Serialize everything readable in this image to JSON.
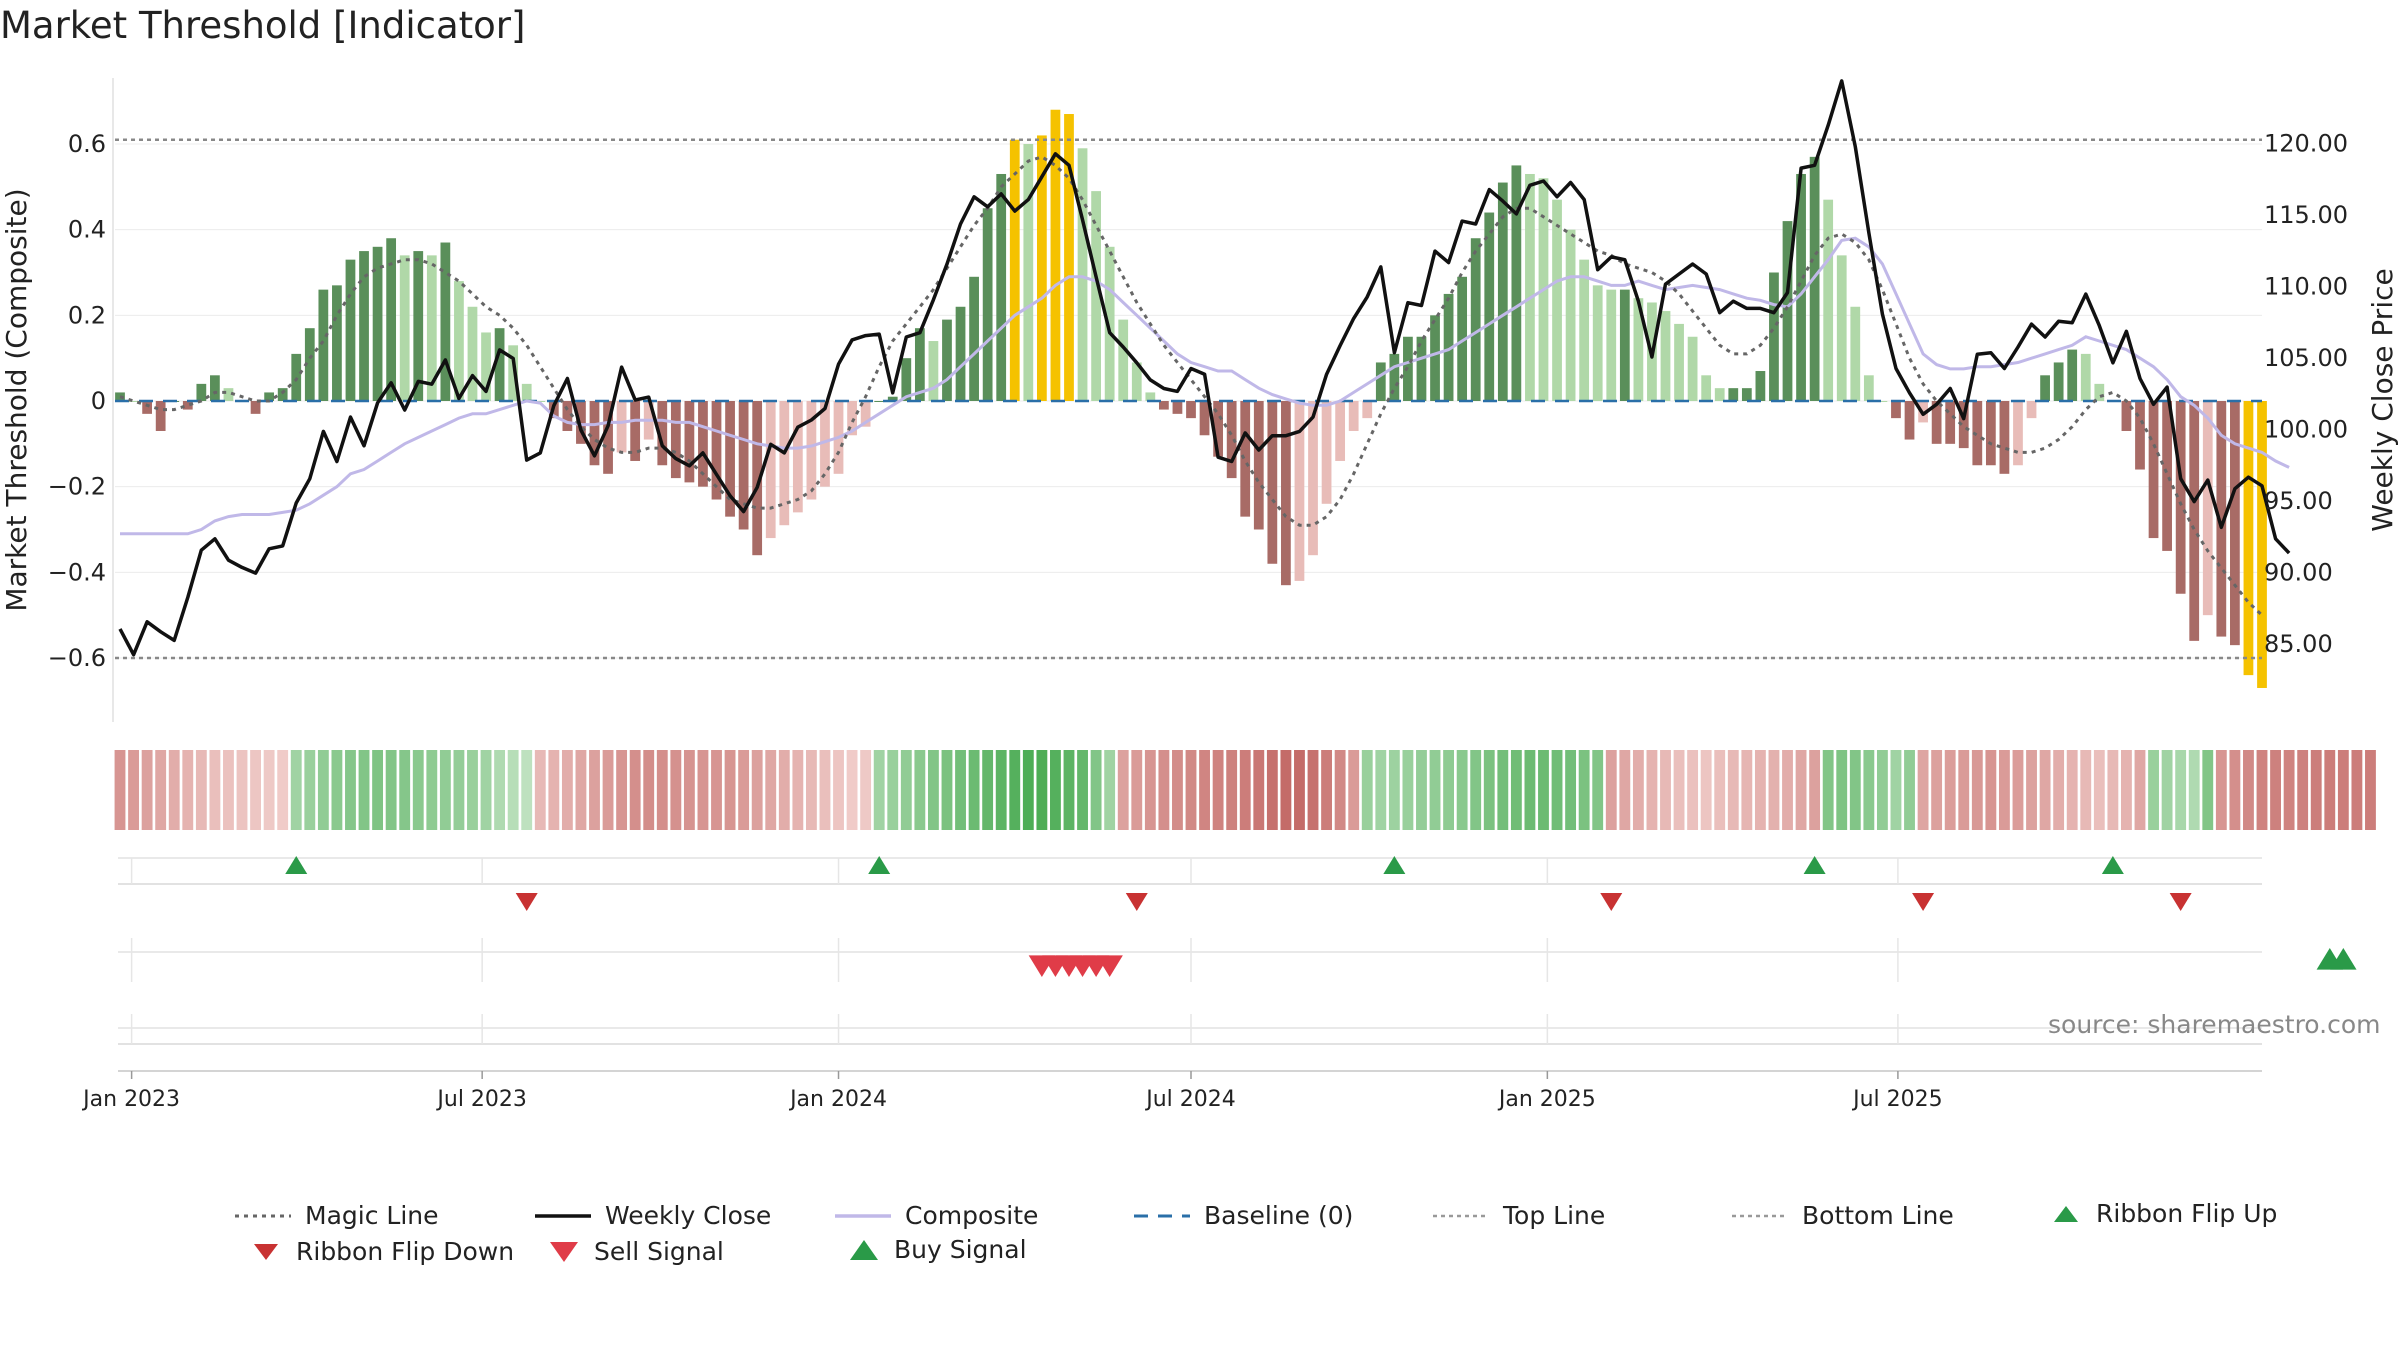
{
  "title": "Market Threshold [Indicator]",
  "source": "source: sharemaestro.com",
  "colors": {
    "pos_dark": "#5a8f5a",
    "pos_light": "#b0d8a8",
    "neg_dark": "#a86b66",
    "neg_light": "#e8bcb8",
    "extreme": "#f5c200",
    "close": "#111111",
    "composite": "#c0b8e8",
    "magic": "#666666",
    "baseline": "#2a6fa8",
    "buy": "#2a9a48",
    "sell": "#d83a3a",
    "flip_down": "#c83232"
  },
  "chart_data": {
    "type": "bar+line",
    "start": "2022-12-26",
    "xlabels": [
      "Jan 2023",
      "Jul 2023",
      "Jan 2024",
      "Jul 2024",
      "Jan 2025",
      "Jul 2025"
    ],
    "ylabel_left": "Market Threshold (Composite)",
    "ylabel_right": "Weekly Close Price",
    "ylim_left": [
      -0.75,
      0.75
    ],
    "yticks_left": [
      "0.6",
      "0.4",
      "0.2",
      "0",
      "−0.2",
      "−0.4",
      "−0.6"
    ],
    "ylim_right": [
      82.5,
      124.5
    ],
    "yticks_right": [
      "120.00",
      "115.00",
      "110.00",
      "105.00",
      "100.00",
      "95.00",
      "90.00",
      "85.00"
    ],
    "top_line": 0.61,
    "bottom_line": -0.6,
    "bars": [
      0.02,
      0,
      -0.03,
      -0.07,
      0,
      -0.02,
      0.04,
      0.06,
      0.03,
      0,
      -0.03,
      0.02,
      0.03,
      0.11,
      0.17,
      0.26,
      0.27,
      0.33,
      0.35,
      0.36,
      0.38,
      0.34,
      0.35,
      0.34,
      0.37,
      0.28,
      0.22,
      0.16,
      0.17,
      0.13,
      0.04,
      0,
      -0.04,
      -0.07,
      -0.1,
      -0.15,
      -0.17,
      -0.12,
      -0.14,
      -0.09,
      -0.15,
      -0.18,
      -0.19,
      -0.2,
      -0.23,
      -0.27,
      -0.3,
      -0.36,
      -0.32,
      -0.29,
      -0.26,
      -0.23,
      -0.2,
      -0.17,
      -0.08,
      -0.06,
      0,
      0.01,
      0.1,
      0.17,
      0.14,
      0.19,
      0.22,
      0.29,
      0.45,
      0.53,
      0.61,
      0.6,
      0.62,
      0.68,
      0.67,
      0.59,
      0.49,
      0.36,
      0.19,
      0.09,
      0.02,
      -0.02,
      -0.03,
      -0.04,
      -0.08,
      -0.13,
      -0.18,
      -0.27,
      -0.3,
      -0.38,
      -0.43,
      -0.42,
      -0.36,
      -0.24,
      -0.14,
      -0.07,
      -0.04,
      0.09,
      0.11,
      0.15,
      0.15,
      0.2,
      0.25,
      0.29,
      0.38,
      0.44,
      0.51,
      0.55,
      0.53,
      0.52,
      0.47,
      0.4,
      0.33,
      0.27,
      0.26,
      0.26,
      0.24,
      0.23,
      0.21,
      0.18,
      0.15,
      0.06,
      0.03,
      0.03,
      0.03,
      0.07,
      0.3,
      0.42,
      0.53,
      0.57,
      0.47,
      0.34,
      0.22,
      0.06,
      0,
      -0.04,
      -0.09,
      -0.05,
      -0.1,
      -0.1,
      -0.11,
      -0.15,
      -0.15,
      -0.17,
      -0.15,
      -0.04,
      0.06,
      0.09,
      0.12,
      0.11,
      0.04,
      0,
      -0.07,
      -0.16,
      -0.32,
      -0.35,
      -0.45,
      -0.56,
      -0.5,
      -0.55,
      -0.57,
      -0.64,
      -0.67
    ],
    "composite": [
      -0.31,
      -0.31,
      -0.31,
      -0.31,
      -0.31,
      -0.31,
      -0.3,
      -0.28,
      -0.27,
      -0.265,
      -0.265,
      -0.265,
      -0.26,
      -0.255,
      -0.24,
      -0.22,
      -0.2,
      -0.17,
      -0.16,
      -0.14,
      -0.12,
      -0.1,
      -0.085,
      -0.07,
      -0.055,
      -0.04,
      -0.03,
      -0.03,
      -0.02,
      -0.01,
      0,
      -0.005,
      -0.035,
      -0.05,
      -0.055,
      -0.055,
      -0.05,
      -0.05,
      -0.045,
      -0.045,
      -0.045,
      -0.05,
      -0.05,
      -0.06,
      -0.07,
      -0.08,
      -0.09,
      -0.1,
      -0.105,
      -0.11,
      -0.11,
      -0.105,
      -0.095,
      -0.085,
      -0.07,
      -0.05,
      -0.03,
      -0.01,
      0.01,
      0.02,
      0.03,
      0.05,
      0.08,
      0.11,
      0.14,
      0.17,
      0.2,
      0.22,
      0.24,
      0.27,
      0.29,
      0.29,
      0.28,
      0.26,
      0.23,
      0.2,
      0.17,
      0.14,
      0.11,
      0.09,
      0.08,
      0.07,
      0.07,
      0.05,
      0.03,
      0.015,
      0.005,
      -0.005,
      -0.01,
      -0.01,
      0,
      0.02,
      0.04,
      0.06,
      0.08,
      0.09,
      0.1,
      0.11,
      0.12,
      0.14,
      0.16,
      0.18,
      0.2,
      0.22,
      0.24,
      0.26,
      0.28,
      0.29,
      0.29,
      0.28,
      0.27,
      0.27,
      0.28,
      0.27,
      0.26,
      0.265,
      0.27,
      0.265,
      0.26,
      0.25,
      0.24,
      0.235,
      0.225,
      0.22,
      0.25,
      0.29,
      0.33,
      0.375,
      0.38,
      0.36,
      0.32,
      0.25,
      0.18,
      0.11,
      0.085,
      0.075,
      0.075,
      0.08,
      0.08,
      0.085,
      0.09,
      0.1,
      0.11,
      0.12,
      0.13,
      0.15,
      0.14,
      0.13,
      0.12,
      0.1,
      0.08,
      0.05,
      0.01,
      -0.01,
      -0.04,
      -0.08,
      -0.1,
      -0.11,
      -0.12,
      -0.14,
      -0.155
    ],
    "magic": [
      0.01,
      0,
      -0.01,
      -0.02,
      -0.02,
      -0.01,
      0,
      0.02,
      0.02,
      0.01,
      0,
      0,
      0.02,
      0.05,
      0.1,
      0.14,
      0.2,
      0.25,
      0.29,
      0.31,
      0.32,
      0.33,
      0.33,
      0.32,
      0.3,
      0.28,
      0.25,
      0.22,
      0.2,
      0.17,
      0.13,
      0.08,
      0.03,
      -0.02,
      -0.06,
      -0.09,
      -0.11,
      -0.12,
      -0.12,
      -0.11,
      -0.11,
      -0.12,
      -0.14,
      -0.17,
      -0.2,
      -0.23,
      -0.24,
      -0.25,
      -0.25,
      -0.24,
      -0.23,
      -0.21,
      -0.17,
      -0.12,
      -0.05,
      0.01,
      0.08,
      0.14,
      0.18,
      0.22,
      0.26,
      0.31,
      0.36,
      0.41,
      0.45,
      0.5,
      0.53,
      0.56,
      0.57,
      0.55,
      0.52,
      0.47,
      0.41,
      0.35,
      0.29,
      0.23,
      0.18,
      0.13,
      0.09,
      0.05,
      0.01,
      -0.03,
      -0.08,
      -0.14,
      -0.19,
      -0.23,
      -0.27,
      -0.29,
      -0.29,
      -0.27,
      -0.23,
      -0.17,
      -0.1,
      -0.03,
      0.03,
      0.08,
      0.14,
      0.19,
      0.24,
      0.3,
      0.35,
      0.39,
      0.43,
      0.45,
      0.45,
      0.43,
      0.41,
      0.39,
      0.37,
      0.35,
      0.34,
      0.32,
      0.31,
      0.3,
      0.28,
      0.25,
      0.21,
      0.17,
      0.13,
      0.11,
      0.11,
      0.13,
      0.17,
      0.22,
      0.28,
      0.34,
      0.38,
      0.39,
      0.37,
      0.33,
      0.26,
      0.18,
      0.1,
      0.04,
      0,
      -0.03,
      -0.06,
      -0.08,
      -0.1,
      -0.11,
      -0.12,
      -0.12,
      -0.11,
      -0.09,
      -0.06,
      -0.02,
      0.01,
      0.02,
      0,
      -0.04,
      -0.1,
      -0.17,
      -0.24,
      -0.3,
      -0.35,
      -0.39,
      -0.43,
      -0.47,
      -0.5
    ],
    "close": [
      86,
      84.2,
      86.5,
      85.8,
      85.2,
      88.2,
      91.5,
      92.3,
      90.8,
      90.3,
      89.9,
      91.6,
      91.8,
      94.8,
      96.5,
      99.8,
      97.7,
      100.8,
      98.8,
      101.8,
      103.2,
      101.3,
      103.3,
      103.1,
      104.8,
      102.1,
      103.7,
      102.6,
      105.5,
      104.9,
      97.8,
      98.3,
      101.6,
      103.5,
      99.9,
      98.1,
      100.2,
      104.3,
      102,
      102.2,
      98.8,
      97.9,
      97.4,
      98.3,
      96.8,
      95.3,
      94.2,
      95.9,
      98.9,
      98.3,
      100.1,
      100.6,
      101.4,
      104.5,
      106.2,
      106.5,
      106.6,
      102.5,
      106.4,
      106.7,
      109,
      111.5,
      114.3,
      116.2,
      115.5,
      116.4,
      115.2,
      116,
      117.6,
      119.2,
      118.4,
      114.6,
      110.6,
      106.7,
      105.7,
      104.6,
      103.4,
      102.8,
      102.6,
      104.2,
      103.8,
      98,
      97.7,
      99.7,
      98.5,
      99.5,
      99.5,
      99.8,
      100.8,
      103.8,
      105.8,
      107.7,
      109.2,
      111.3,
      105.3,
      108.8,
      108.6,
      112.4,
      111.6,
      114.5,
      114.3,
      116.7,
      115.9,
      115,
      117,
      117.3,
      116.2,
      117.2,
      116,
      111.1,
      112,
      111.8,
      108.9,
      105,
      110.1,
      110.8,
      111.5,
      110.8,
      108.1,
      108.9,
      108.4,
      108.4,
      108.1,
      109.5,
      118.2,
      118.4,
      121.2,
      124.3,
      119.7,
      113.7,
      108,
      104.2,
      102.5,
      101,
      101.7,
      102.8,
      100.7,
      105.2,
      105.3,
      104.2,
      105.7,
      107.3,
      106.4,
      107.5,
      107.4,
      109.4,
      107.2,
      104.6,
      106.8,
      103.5,
      101.7,
      102.9,
      96.5,
      94.9,
      96.4,
      93.1,
      95.8,
      96.6,
      96,
      92.3,
      91.3
    ],
    "ribbon_intensity": [
      0.55,
      0.5,
      0.45,
      0.4,
      0.35,
      0.3,
      0.25,
      0.2,
      0.18,
      0.16,
      0.14,
      0.12,
      0.1,
      0.3,
      0.35,
      0.4,
      0.45,
      0.48,
      0.5,
      0.52,
      0.5,
      0.48,
      0.45,
      0.42,
      0.4,
      0.38,
      0.35,
      0.3,
      0.2,
      0.15,
      0.1,
      0.25,
      0.3,
      0.35,
      0.4,
      0.45,
      0.5,
      0.55,
      0.6,
      0.62,
      0.6,
      0.58,
      0.56,
      0.55,
      0.55,
      0.55,
      0.5,
      0.45,
      0.4,
      0.35,
      0.3,
      0.25,
      0.2,
      0.15,
      0.1,
      0.12,
      0.3,
      0.35,
      0.4,
      0.45,
      0.5,
      0.55,
      0.6,
      0.65,
      0.7,
      0.75,
      0.8,
      0.85,
      0.85,
      0.8,
      0.75,
      0.7,
      0.5,
      0.3,
      0.45,
      0.5,
      0.55,
      0.6,
      0.62,
      0.65,
      0.68,
      0.7,
      0.72,
      0.75,
      0.8,
      0.85,
      0.9,
      0.9,
      0.85,
      0.75,
      0.65,
      0.5,
      0.35,
      0.3,
      0.32,
      0.35,
      0.38,
      0.4,
      0.42,
      0.45,
      0.5,
      0.55,
      0.6,
      0.62,
      0.65,
      0.65,
      0.62,
      0.6,
      0.55,
      0.5,
      0.45,
      0.4,
      0.35,
      0.3,
      0.25,
      0.2,
      0.18,
      0.15,
      0.2,
      0.25,
      0.28,
      0.3,
      0.32,
      0.35,
      0.4,
      0.45,
      0.5,
      0.52,
      0.5,
      0.45,
      0.4,
      0.3,
      0.4,
      0.42,
      0.45,
      0.48,
      0.5,
      0.52,
      0.55,
      0.5,
      0.48,
      0.45,
      0.4,
      0.35,
      0.3,
      0.25,
      0.2,
      0.25,
      0.3,
      0.4,
      0.35,
      0.3,
      0.25,
      0.2,
      0.5,
      0.55,
      0.6,
      0.65,
      0.7,
      0.72,
      0.7,
      0.72,
      0.74,
      0.75,
      0.75,
      0.75,
      0.75
    ],
    "ribbon_sign": [
      -1,
      -1,
      -1,
      -1,
      -1,
      -1,
      -1,
      -1,
      -1,
      -1,
      -1,
      -1,
      -1,
      1,
      1,
      1,
      1,
      1,
      1,
      1,
      1,
      1,
      1,
      1,
      1,
      1,
      1,
      1,
      1,
      1,
      1,
      -1,
      -1,
      -1,
      -1,
      -1,
      -1,
      -1,
      -1,
      -1,
      -1,
      -1,
      -1,
      -1,
      -1,
      -1,
      -1,
      -1,
      -1,
      -1,
      -1,
      -1,
      -1,
      -1,
      -1,
      -1,
      1,
      1,
      1,
      1,
      1,
      1,
      1,
      1,
      1,
      1,
      1,
      1,
      1,
      1,
      1,
      1,
      1,
      1,
      -1,
      -1,
      -1,
      -1,
      -1,
      -1,
      -1,
      -1,
      -1,
      -1,
      -1,
      -1,
      -1,
      -1,
      -1,
      -1,
      -1,
      -1,
      1,
      1,
      1,
      1,
      1,
      1,
      1,
      1,
      1,
      1,
      1,
      1,
      1,
      1,
      1,
      1,
      1,
      1,
      -1,
      -1,
      -1,
      -1,
      -1,
      -1,
      -1,
      -1,
      -1,
      -1,
      -1,
      -1,
      -1,
      -1,
      -1,
      -1,
      1,
      1,
      1,
      1,
      1,
      1,
      1,
      -1,
      -1,
      -1,
      -1,
      -1,
      -1,
      -1,
      -1,
      -1,
      -1,
      -1,
      -1,
      -1,
      -1,
      -1,
      -1,
      -1,
      1,
      1,
      1,
      1,
      1,
      -1,
      -1,
      -1,
      -1,
      -1,
      -1,
      -1,
      -1,
      -1,
      -1,
      -1,
      -1,
      -1
    ],
    "ribbon_flip_up": [
      13,
      56,
      94,
      125,
      147
    ],
    "ribbon_flip_down": [
      30,
      75,
      110,
      133,
      152
    ],
    "sell_signal": [
      68,
      69,
      70,
      71,
      72,
      73
    ],
    "buy_signal": [
      163,
      164
    ],
    "legend": [
      "Magic Line",
      "Weekly Close",
      "Composite",
      "Baseline (0)",
      "Top Line",
      "Bottom Line",
      "Ribbon Flip Up",
      "Ribbon Flip Down",
      "Sell Signal",
      "Buy Signal"
    ]
  }
}
